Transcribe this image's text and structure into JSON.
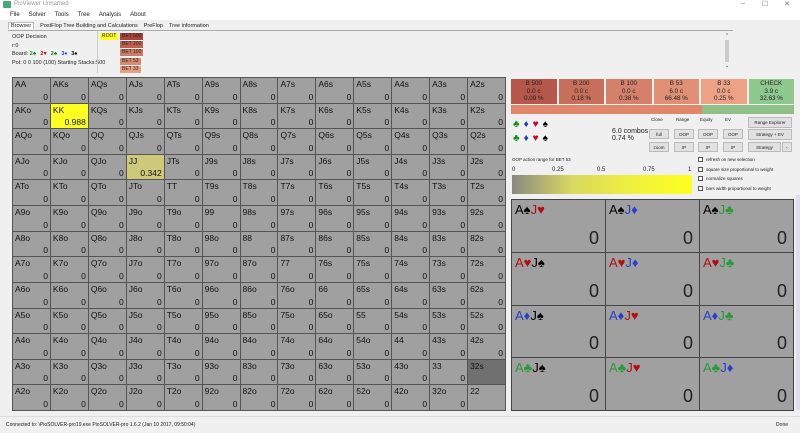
{
  "window": {
    "title": "PioViewer Unnamed",
    "minimize": "–",
    "maximize": "☐",
    "close": "✕"
  },
  "menu": [
    "File",
    "Solver",
    "Tools",
    "Tree",
    "Analysis",
    "About"
  ],
  "tabs": [
    "Browser",
    "PostFlop Tree Building and Calculations",
    "PreFlop",
    "Tree information"
  ],
  "info": {
    "decision": "OOP Decision",
    "path": "r:0",
    "board_label": "Board:",
    "board": [
      {
        "c": "2♣",
        "color": "#1a8a1a"
      },
      {
        "c": "2♥",
        "color": "#c00000"
      },
      {
        "c": "2♣",
        "color": "#1a8a1a"
      },
      {
        "c": "3♦",
        "color": "#2040c0"
      },
      {
        "c": "3♠",
        "color": "#000000"
      }
    ],
    "pot": "Pot: 0 0 100 (100) Starting Stacks:500"
  },
  "tree": {
    "root": "ROOT",
    "nodes": [
      "BET 500",
      "BET 200",
      "BET 100",
      "BET 53",
      "BET 33"
    ],
    "node_colors": [
      "#a8453a",
      "#c06050",
      "#cc7a62",
      "#d98a70",
      "#e8a082"
    ]
  },
  "actions": [
    {
      "label": "B 500",
      "combos": "0.0 c",
      "pct": "0.09 %",
      "color": "#b5574a"
    },
    {
      "label": "B 200",
      "combos": "0.0 c",
      "pct": "0.18 %",
      "color": "#c86f5c"
    },
    {
      "label": "B 100",
      "combos": "0.0 c",
      "pct": "0.38 %",
      "color": "#d5806a"
    },
    {
      "label": "B 53",
      "combos": "6.0 c",
      "pct": "66.48 %",
      "color": "#e09075"
    },
    {
      "label": "B 33",
      "combos": "0.0 c",
      "pct": "0.25 %",
      "color": "#eda286"
    },
    {
      "label": "CHECK",
      "combos": "3.9 c",
      "pct": "32.63 %",
      "color": "#8fc88f"
    }
  ],
  "freq": [
    {
      "pct": 67.37,
      "color": "#e0866a"
    },
    {
      "pct": 32.63,
      "color": "#8fc08a"
    }
  ],
  "suit_rows": [
    [
      "♣",
      "♦",
      "♥",
      "♠"
    ],
    [
      "♣",
      "♦",
      "♥",
      "♠"
    ]
  ],
  "suit_colors": [
    "#1a8a1a",
    "#2040c0",
    "#d00020",
    "#000000"
  ],
  "selection": {
    "combos": "6.0 combos",
    "pct": "0.74 %"
  },
  "controls": {
    "headers": [
      "Clone",
      "Range",
      "Equity",
      "EV"
    ],
    "row1": [
      "full",
      "OOP",
      "OOP",
      "OOP"
    ],
    "row2": [
      "zoom",
      "IP",
      "IP",
      "IP"
    ],
    "range_explorer": "Range Explorer",
    "strategy_ev": "Strategy + EV",
    "strategy": "Strategy",
    "more": "‹"
  },
  "range_label": "OOP action range for BET 53",
  "scale_ticks": [
    "0",
    "0.25",
    "0.5",
    "0.75",
    "1"
  ],
  "options": [
    "refresh on new selection",
    "square size proportional to weight",
    "normalize squares",
    "bars width proportional to weight"
  ],
  "grid": {
    "hands": [
      [
        "AA",
        "AKs",
        "AQs",
        "AJs",
        "ATs",
        "A9s",
        "A8s",
        "A7s",
        "A6s",
        "A5s",
        "A4s",
        "A3s",
        "A2s"
      ],
      [
        "AKo",
        "KK",
        "KQs",
        "KJs",
        "KTs",
        "K9s",
        "K8s",
        "K7s",
        "K6s",
        "K5s",
        "K4s",
        "K3s",
        "K2s"
      ],
      [
        "AQo",
        "KQo",
        "QQ",
        "QJs",
        "QTs",
        "Q9s",
        "Q8s",
        "Q7s",
        "Q6s",
        "Q5s",
        "Q4s",
        "Q3s",
        "Q2s"
      ],
      [
        "AJo",
        "KJo",
        "QJo",
        "JJ",
        "JTs",
        "J9s",
        "J8s",
        "J7s",
        "J6s",
        "J5s",
        "J4s",
        "J3s",
        "J2s"
      ],
      [
        "ATo",
        "KTo",
        "QTo",
        "JTo",
        "TT",
        "T9s",
        "T8s",
        "T7s",
        "T6s",
        "T5s",
        "T4s",
        "T3s",
        "T2s"
      ],
      [
        "A9o",
        "K9o",
        "Q9o",
        "J9o",
        "T9o",
        "99",
        "98s",
        "97s",
        "96s",
        "95s",
        "94s",
        "93s",
        "92s"
      ],
      [
        "A8o",
        "K8o",
        "Q8o",
        "J8o",
        "T8o",
        "98o",
        "88",
        "87s",
        "86s",
        "85s",
        "84s",
        "83s",
        "82s"
      ],
      [
        "A7o",
        "K7o",
        "Q7o",
        "J7o",
        "T7o",
        "97o",
        "87o",
        "77",
        "76s",
        "75s",
        "74s",
        "73s",
        "72s"
      ],
      [
        "A6o",
        "K6o",
        "Q6o",
        "J6o",
        "T6o",
        "96o",
        "86o",
        "76o",
        "66",
        "65s",
        "64s",
        "63s",
        "62s"
      ],
      [
        "A5o",
        "K5o",
        "Q5o",
        "J5o",
        "T5o",
        "95o",
        "85o",
        "75o",
        "65o",
        "55",
        "54s",
        "53s",
        "52s"
      ],
      [
        "A4o",
        "K4o",
        "Q4o",
        "J4o",
        "T4o",
        "94o",
        "84o",
        "74o",
        "64o",
        "54o",
        "44",
        "43s",
        "42s"
      ],
      [
        "A3o",
        "K3o",
        "Q3o",
        "J3o",
        "T3o",
        "93o",
        "83o",
        "73o",
        "63o",
        "53o",
        "43o",
        "33",
        "32s"
      ],
      [
        "A2o",
        "K2o",
        "Q2o",
        "J2o",
        "T2o",
        "92o",
        "82o",
        "72o",
        "62o",
        "52o",
        "42o",
        "32o",
        "22"
      ]
    ],
    "values": [
      [
        "0",
        "0",
        "0",
        "0",
        "0",
        "0",
        "0",
        "0",
        "0",
        "0",
        "0",
        "0",
        "0"
      ],
      [
        "0",
        "0.988",
        "0",
        "0",
        "0",
        "0",
        "0",
        "0",
        "0",
        "0",
        "0",
        "0",
        "0"
      ],
      [
        "0",
        "0",
        "0",
        "0",
        "0",
        "0",
        "0",
        "0",
        "0",
        "0",
        "0",
        "0",
        "0"
      ],
      [
        "0",
        "0",
        "0",
        "0.342",
        "0",
        "0",
        "0",
        "0",
        "0",
        "0",
        "0",
        "0",
        "0"
      ],
      [
        "0",
        "0",
        "0",
        "0",
        "0",
        "0",
        "0",
        "0",
        "0",
        "0",
        "0",
        "0",
        "0"
      ],
      [
        "0",
        "0",
        "0",
        "0",
        "0",
        "0",
        "0",
        "0",
        "0",
        "0",
        "0",
        "0",
        "0"
      ],
      [
        "0",
        "0",
        "0",
        "0",
        "0",
        "0",
        "0",
        "0",
        "0",
        "0",
        "0",
        "0",
        "0"
      ],
      [
        "0",
        "0",
        "0",
        "0",
        "0",
        "0",
        "0",
        "0",
        "0",
        "0",
        "0",
        "0",
        "0"
      ],
      [
        "0",
        "0",
        "0",
        "0",
        "0",
        "0",
        "0",
        "0",
        "0",
        "0",
        "0",
        "0",
        "0"
      ],
      [
        "0",
        "0",
        "0",
        "0",
        "0",
        "0",
        "0",
        "0",
        "0",
        "0",
        "0",
        "0",
        "0"
      ],
      [
        "0",
        "0",
        "0",
        "0",
        "0",
        "0",
        "0",
        "0",
        "0",
        "0",
        "0",
        "0",
        "0"
      ],
      [
        "0",
        "0",
        "0",
        "0",
        "0",
        "0",
        "0",
        "0",
        "0",
        "0",
        "0",
        "0",
        ""
      ],
      [
        "0",
        "0",
        "0",
        "0",
        "0",
        "0",
        "0",
        "0",
        "0",
        "0",
        "0",
        "0",
        ""
      ]
    ],
    "highlights": {
      "1,1": "#ffff20",
      "3,3": "#cdc87a",
      "11,12": "#707070"
    }
  },
  "combo_cards": [
    {
      "cards": [
        [
          "A♠",
          "#000"
        ],
        [
          "J♥",
          "#b01010"
        ]
      ],
      "value": "0"
    },
    {
      "cards": [
        [
          "A♠",
          "#000"
        ],
        [
          "J♦",
          "#2a40c8"
        ]
      ],
      "value": "0"
    },
    {
      "cards": [
        [
          "A♠",
          "#000"
        ],
        [
          "J♣",
          "#2a9a3a"
        ]
      ],
      "value": "0"
    },
    {
      "cards": [
        [
          "A♥",
          "#b01010"
        ],
        [
          "J♠",
          "#000"
        ]
      ],
      "value": "0"
    },
    {
      "cards": [
        [
          "A♥",
          "#b01010"
        ],
        [
          "J♦",
          "#2a40c8"
        ]
      ],
      "value": "0"
    },
    {
      "cards": [
        [
          "A♥",
          "#b01010"
        ],
        [
          "J♣",
          "#2a9a3a"
        ]
      ],
      "value": "0"
    },
    {
      "cards": [
        [
          "A♦",
          "#2a40c8"
        ],
        [
          "J♠",
          "#000"
        ]
      ],
      "value": "0"
    },
    {
      "cards": [
        [
          "A♦",
          "#2a40c8"
        ],
        [
          "J♥",
          "#b01010"
        ]
      ],
      "value": "0"
    },
    {
      "cards": [
        [
          "A♦",
          "#2a40c8"
        ],
        [
          "J♣",
          "#2a9a3a"
        ]
      ],
      "value": "0"
    },
    {
      "cards": [
        [
          "A♣",
          "#2a9a3a"
        ],
        [
          "J♠",
          "#000"
        ]
      ],
      "value": "0"
    },
    {
      "cards": [
        [
          "A♣",
          "#2a9a3a"
        ],
        [
          "J♥",
          "#b01010"
        ]
      ],
      "value": "0"
    },
    {
      "cards": [
        [
          "A♣",
          "#2a9a3a"
        ],
        [
          "J♦",
          "#2a40c8"
        ]
      ],
      "value": "0"
    }
  ],
  "status": {
    "left": "Connected to: \\PioSOLVER-pro19.exe PioSOLVER-pro 1.6.2 (Jan 10 2017, 09:50:04)",
    "right": "Done"
  }
}
